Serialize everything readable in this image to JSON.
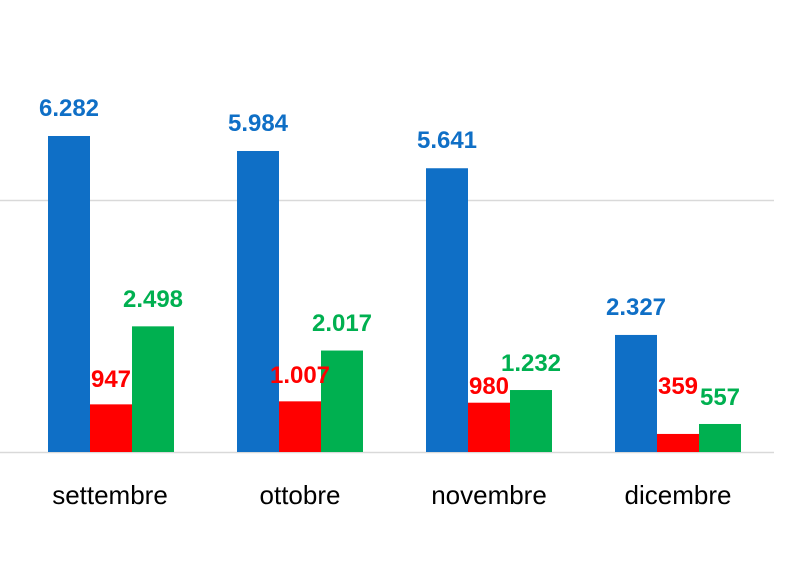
{
  "chart_data": {
    "type": "bar",
    "categories": [
      "settembre",
      "ottobre",
      "novembre",
      "dicembre"
    ],
    "series": [
      {
        "color": "#0f6fc6",
        "values": [
          6282,
          5984,
          5641,
          2327
        ],
        "labels": [
          "6.282",
          "5.984",
          "5.641",
          "2.327"
        ]
      },
      {
        "color": "#ff0000",
        "values": [
          947,
          1007,
          980,
          359
        ],
        "labels": [
          "947",
          "1.007",
          "980",
          "359"
        ]
      },
      {
        "color": "#00b050",
        "values": [
          2498,
          2017,
          1232,
          557
        ],
        "labels": [
          "2.498",
          "2.017",
          "1.232",
          "557"
        ]
      }
    ],
    "ylim": [
      0,
      7000
    ],
    "gridlines": [
      5000
    ],
    "grid": "horizontal",
    "legend": "none"
  }
}
